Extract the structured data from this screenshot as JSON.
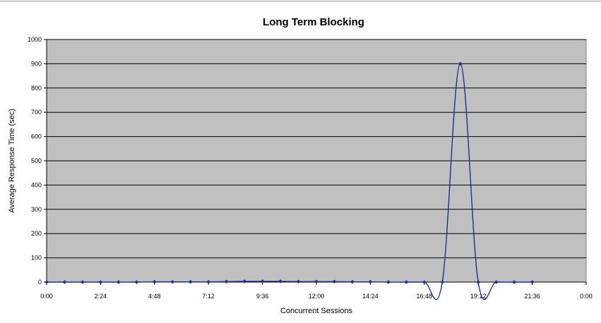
{
  "chart_data": {
    "type": "line",
    "title": "Long Term Blocking",
    "xlabel": "Concurrent Sessions",
    "ylabel": "Average Response Time (sec)",
    "x_ticks": [
      "0:00",
      "2:24",
      "4:48",
      "7:12",
      "9:36",
      "12:00",
      "14:24",
      "16:48",
      "19:12",
      "21:36",
      "0:00"
    ],
    "xlim_minutes": [
      0,
      1440
    ],
    "ylim": [
      0,
      1000
    ],
    "y_ticks": [
      0,
      100,
      200,
      300,
      400,
      500,
      600,
      700,
      800,
      900,
      1000
    ],
    "grid": true,
    "legend": "none",
    "colors": {
      "plot_bg": "#c0c0c0",
      "line": "#1f2f8f",
      "grid": "#000000"
    },
    "series": [
      {
        "x_minutes": [
          0,
          48,
          96,
          144,
          192,
          240,
          288,
          336,
          384,
          432,
          480,
          528,
          576,
          624,
          672,
          720,
          768,
          816,
          864,
          912,
          960,
          1008,
          1056,
          1104,
          1152,
          1200,
          1248,
          1296
        ],
        "values": [
          0,
          0,
          0,
          0,
          0,
          0,
          1,
          1,
          1,
          1,
          2,
          3,
          3,
          3,
          2,
          2,
          2,
          1,
          1,
          0,
          0,
          0,
          0,
          900,
          0,
          0,
          0,
          0
        ]
      }
    ]
  }
}
